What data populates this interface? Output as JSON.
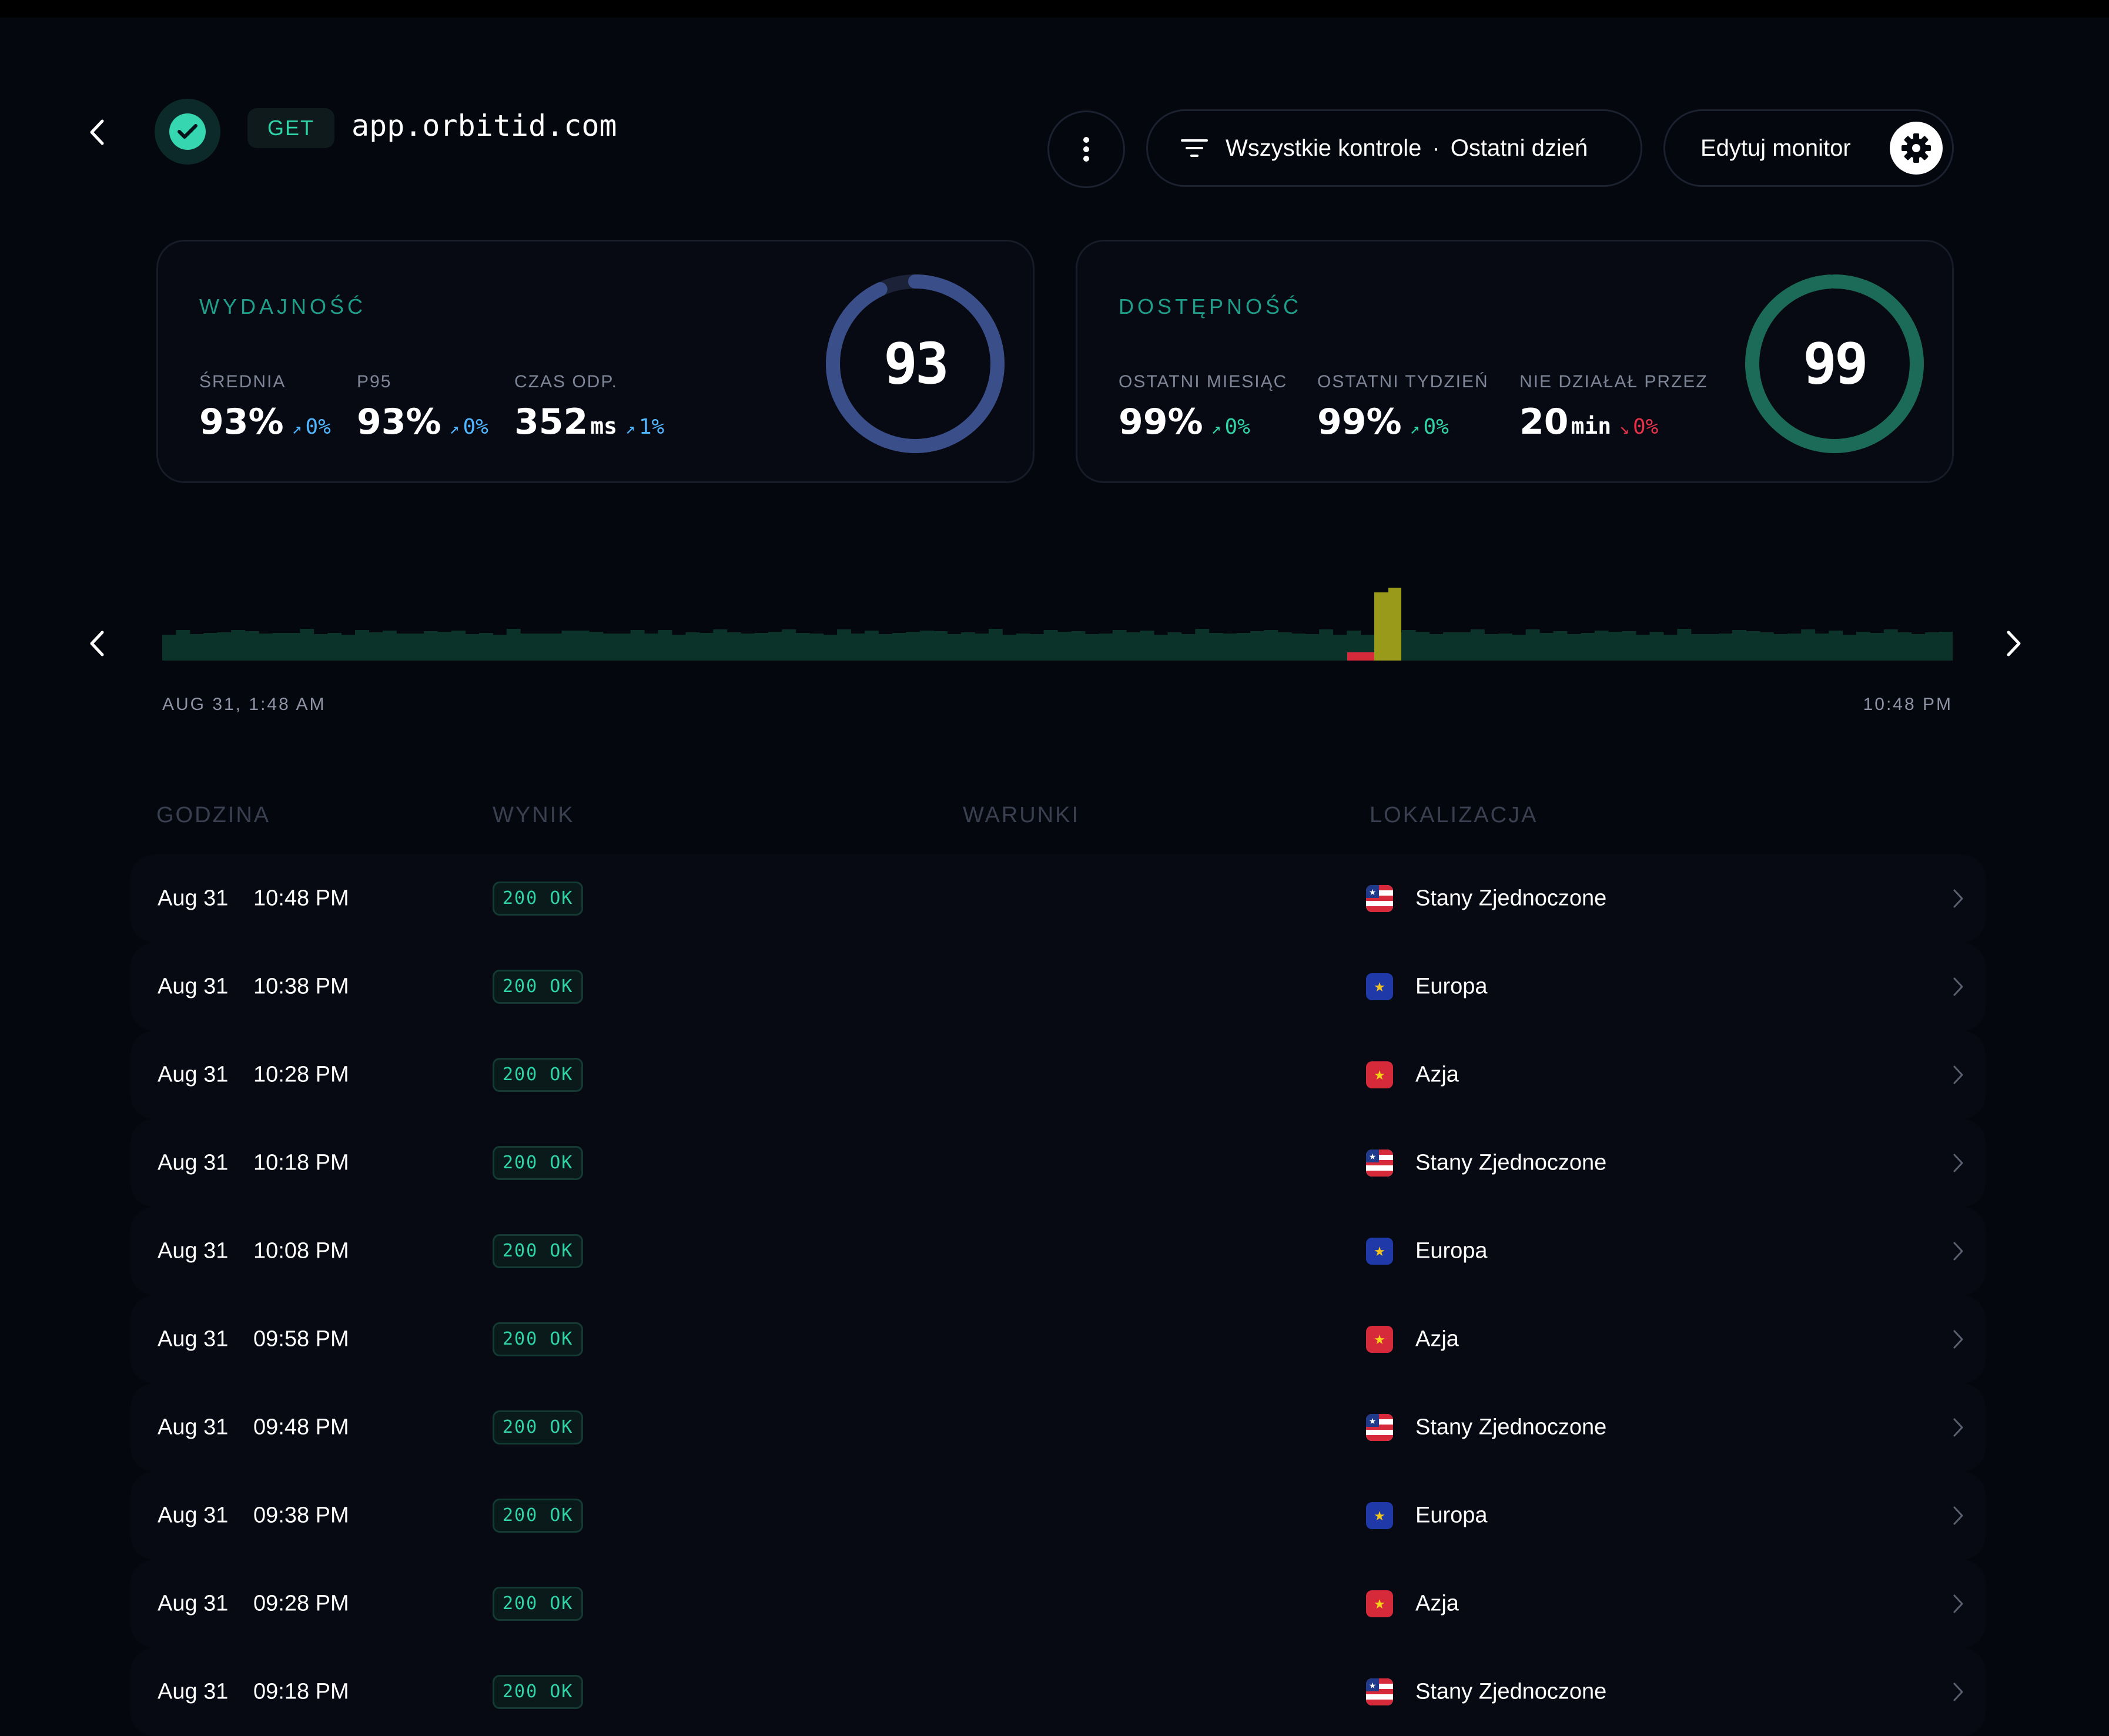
{
  "header": {
    "method": "GET",
    "url": "app.orbitid.com",
    "filter_label": "Wszystkie kontrole",
    "filter_separator": "·",
    "period_label": "Ostatni dzień",
    "edit_label": "Edytuj monitor"
  },
  "performance": {
    "title": "WYDAJNOŚĆ",
    "score": "93",
    "score_fraction": 0.93,
    "metrics": [
      {
        "label": "ŚREDNIA",
        "value": "93%",
        "unit": "",
        "delta": "0%"
      },
      {
        "label": "P95",
        "value": "93%",
        "unit": "",
        "delta": "0%"
      },
      {
        "label": "CZAS ODP.",
        "value": "352",
        "unit": "ms",
        "delta": "1%"
      }
    ]
  },
  "availability": {
    "title": "DOSTĘPNOŚĆ",
    "score": "99",
    "score_fraction": 0.99,
    "metrics": [
      {
        "label": "OSTATNI MIESIĄC",
        "value": "99%",
        "unit": "",
        "delta": "0%"
      },
      {
        "label": "OSTATNI TYDZIEŃ",
        "value": "99%",
        "unit": "",
        "delta": "0%"
      },
      {
        "label": "NIE DZIAŁAŁ PRZEZ",
        "value": "20",
        "unit": "min",
        "delta": "0%"
      }
    ]
  },
  "timeline": {
    "start_label": "AUG 31, 1:48 AM",
    "end_label": "10:48 PM"
  },
  "table": {
    "headers": {
      "time": "GODZINA",
      "result": "WYNIK",
      "conditions": "WARUNKI",
      "location": "LOKALIZACJA"
    },
    "rows": [
      {
        "date": "Aug 31",
        "time": "10:48 PM",
        "status": "200 OK",
        "location": "Stany Zjednoczone",
        "flag": "us"
      },
      {
        "date": "Aug 31",
        "time": "10:38 PM",
        "status": "200 OK",
        "location": "Europa",
        "flag": "eu"
      },
      {
        "date": "Aug 31",
        "time": "10:28 PM",
        "status": "200 OK",
        "location": "Azja",
        "flag": "asia"
      },
      {
        "date": "Aug 31",
        "time": "10:18 PM",
        "status": "200 OK",
        "location": "Stany Zjednoczone",
        "flag": "us"
      },
      {
        "date": "Aug 31",
        "time": "10:08 PM",
        "status": "200 OK",
        "location": "Europa",
        "flag": "eu"
      },
      {
        "date": "Aug 31",
        "time": "09:58 PM",
        "status": "200 OK",
        "location": "Azja",
        "flag": "asia"
      },
      {
        "date": "Aug 31",
        "time": "09:48 PM",
        "status": "200 OK",
        "location": "Stany Zjednoczone",
        "flag": "us"
      },
      {
        "date": "Aug 31",
        "time": "09:38 PM",
        "status": "200 OK",
        "location": "Europa",
        "flag": "eu"
      },
      {
        "date": "Aug 31",
        "time": "09:28 PM",
        "status": "200 OK",
        "location": "Azja",
        "flag": "asia"
      },
      {
        "date": "Aug 31",
        "time": "09:18 PM",
        "status": "200 OK",
        "location": "Stany Zjednoczone",
        "flag": "us"
      }
    ]
  },
  "colors": {
    "accent_green": "#2fd4a8",
    "accent_blue": "#4fb6ff",
    "danger_red": "#e8324a",
    "perf_ring": "#3a4f8a",
    "avail_ring": "#1c6a58",
    "timeline_bar": "#0c3329",
    "timeline_warn": "#9a9a1a",
    "timeline_down": "#d62a3a"
  },
  "icons": {
    "back": "chevron-left-icon",
    "status": "check-circle-icon",
    "more": "kebab-icon",
    "filter": "filter-icon",
    "settings": "gear-icon",
    "row": "chevron-right-icon"
  }
}
